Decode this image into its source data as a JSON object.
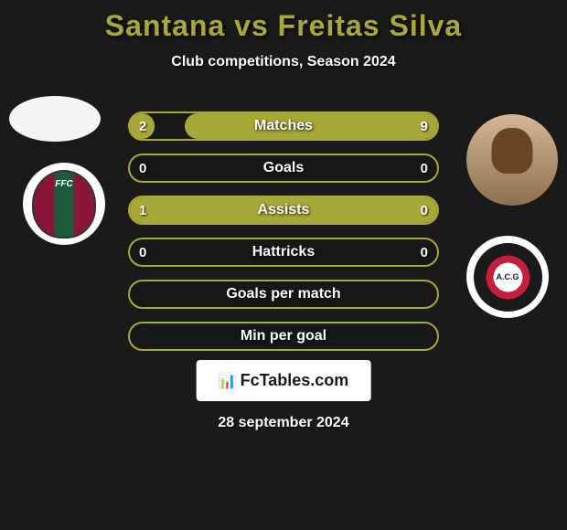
{
  "header": {
    "title": "Santana vs Freitas Silva",
    "subtitle": "Club competitions, Season 2024"
  },
  "players": {
    "left": {
      "name": "Santana",
      "team": "Fluminense"
    },
    "right": {
      "name": "Freitas Silva",
      "team": "Atletico Goianiense"
    }
  },
  "stats": [
    {
      "label": "Matches",
      "left_value": "2",
      "right_value": "9",
      "left_fill_pct": 8,
      "right_fill_pct": 82,
      "border_color": "#a8a838",
      "fill_color": "#a8a838"
    },
    {
      "label": "Goals",
      "left_value": "0",
      "right_value": "0",
      "left_fill_pct": 0,
      "right_fill_pct": 0,
      "border_color": "#a8a838",
      "fill_color": "#a8a838"
    },
    {
      "label": "Assists",
      "left_value": "1",
      "right_value": "0",
      "left_fill_pct": 100,
      "right_fill_pct": 0,
      "border_color": "#a8a838",
      "fill_color": "#a8a838"
    },
    {
      "label": "Hattricks",
      "left_value": "0",
      "right_value": "0",
      "left_fill_pct": 0,
      "right_fill_pct": 0,
      "border_color": "#a8a838",
      "fill_color": "#a8a838"
    },
    {
      "label": "Goals per match",
      "left_value": "",
      "right_value": "",
      "left_fill_pct": 0,
      "right_fill_pct": 0,
      "border_color": "#a8a838",
      "fill_color": "#a8a838"
    },
    {
      "label": "Min per goal",
      "left_value": "",
      "right_value": "",
      "left_fill_pct": 0,
      "right_fill_pct": 0,
      "border_color": "#a8a838",
      "fill_color": "#a8a838"
    }
  ],
  "footer": {
    "logo_text": "FcTables.com",
    "date": "28 september 2024"
  },
  "colors": {
    "background": "#1a1a1a",
    "title_color": "#a8a838",
    "text_color": "#ffffff",
    "accent": "#a8a838"
  }
}
